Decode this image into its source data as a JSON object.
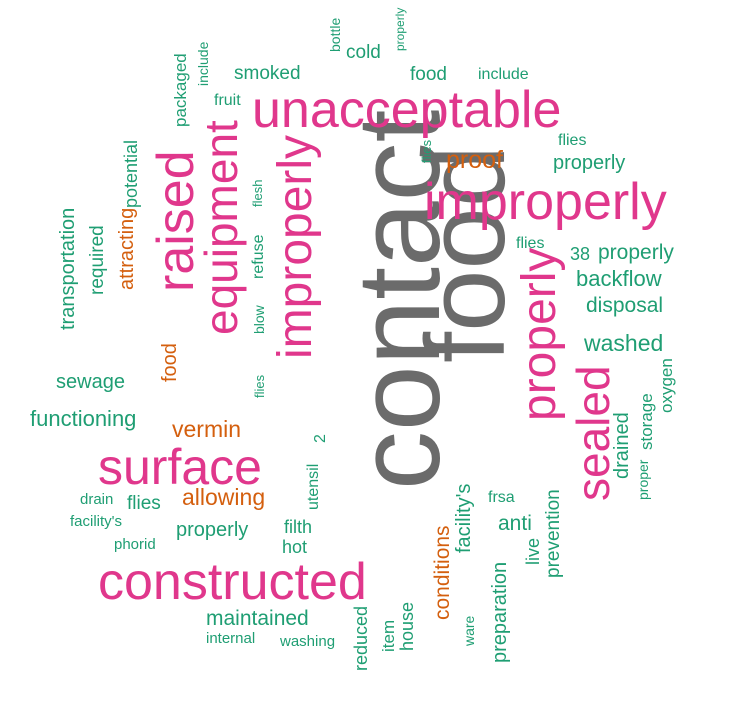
{
  "colors": {
    "gray": "#6b6b6b",
    "pink": "#e0378c",
    "orange": "#d45f0e",
    "green": "#1f9e73"
  },
  "words": [
    {
      "text": "contact",
      "color": "gray"
    },
    {
      "text": "food",
      "color": "gray"
    },
    {
      "text": "unacceptable",
      "color": "pink"
    },
    {
      "text": "improperly",
      "color": "pink"
    },
    {
      "text": "constructed",
      "color": "pink"
    },
    {
      "text": "surface",
      "color": "pink"
    },
    {
      "text": "equipment",
      "color": "pink"
    },
    {
      "text": "improperly",
      "color": "pink"
    },
    {
      "text": "raised",
      "color": "pink"
    },
    {
      "text": "properly",
      "color": "pink"
    },
    {
      "text": "sealed",
      "color": "pink"
    },
    {
      "text": "proof",
      "color": "orange"
    },
    {
      "text": "attracting",
      "color": "orange"
    },
    {
      "text": "food",
      "color": "orange"
    },
    {
      "text": "vermin",
      "color": "orange"
    },
    {
      "text": "allowing",
      "color": "orange"
    },
    {
      "text": "conditions",
      "color": "orange"
    },
    {
      "text": "smoked",
      "color": "green"
    },
    {
      "text": "cold",
      "color": "green"
    },
    {
      "text": "food",
      "color": "green"
    },
    {
      "text": "include",
      "color": "green"
    },
    {
      "text": "bottle",
      "color": "green"
    },
    {
      "text": "properly",
      "color": "green"
    },
    {
      "text": "include",
      "color": "green"
    },
    {
      "text": "fruit",
      "color": "green"
    },
    {
      "text": "packaged",
      "color": "green"
    },
    {
      "text": "potential",
      "color": "green"
    },
    {
      "text": "flies",
      "color": "green"
    },
    {
      "text": "properly",
      "color": "green"
    },
    {
      "text": "flies",
      "color": "green"
    },
    {
      "text": "flesh",
      "color": "green"
    },
    {
      "text": "transportation",
      "color": "green"
    },
    {
      "text": "required",
      "color": "green"
    },
    {
      "text": "refuse",
      "color": "green"
    },
    {
      "text": "blow",
      "color": "green"
    },
    {
      "text": "flies",
      "color": "green"
    },
    {
      "text": "38",
      "color": "green"
    },
    {
      "text": "properly",
      "color": "green"
    },
    {
      "text": "backflow",
      "color": "green"
    },
    {
      "text": "disposal",
      "color": "green"
    },
    {
      "text": "washed",
      "color": "green"
    },
    {
      "text": "sewage",
      "color": "green"
    },
    {
      "text": "flies",
      "color": "green"
    },
    {
      "text": "functioning",
      "color": "green"
    },
    {
      "text": "storage",
      "color": "green"
    },
    {
      "text": "oxygen",
      "color": "green"
    },
    {
      "text": "drained",
      "color": "green"
    },
    {
      "text": "proper",
      "color": "green"
    },
    {
      "text": "utensil",
      "color": "green"
    },
    {
      "text": "2",
      "color": "green"
    },
    {
      "text": "drain",
      "color": "green"
    },
    {
      "text": "flies",
      "color": "green"
    },
    {
      "text": "facility's",
      "color": "green"
    },
    {
      "text": "phorid",
      "color": "green"
    },
    {
      "text": "properly",
      "color": "green"
    },
    {
      "text": "filth",
      "color": "green"
    },
    {
      "text": "hot",
      "color": "green"
    },
    {
      "text": "facility's",
      "color": "green"
    },
    {
      "text": "frsa",
      "color": "green"
    },
    {
      "text": "anti",
      "color": "green"
    },
    {
      "text": "live",
      "color": "green"
    },
    {
      "text": "prevention",
      "color": "green"
    },
    {
      "text": "maintained",
      "color": "green"
    },
    {
      "text": "internal",
      "color": "green"
    },
    {
      "text": "washing",
      "color": "green"
    },
    {
      "text": "reduced",
      "color": "green"
    },
    {
      "text": "item",
      "color": "green"
    },
    {
      "text": "house",
      "color": "green"
    },
    {
      "text": "ware",
      "color": "green"
    },
    {
      "text": "preparation",
      "color": "green"
    }
  ]
}
